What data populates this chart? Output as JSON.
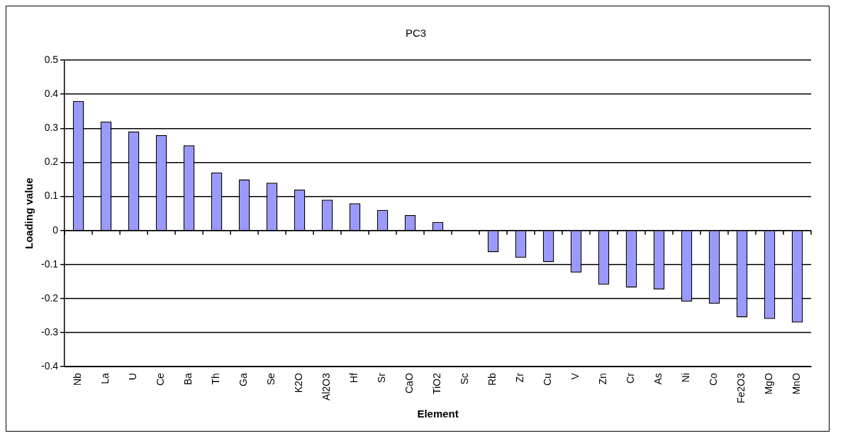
{
  "chart_data": {
    "type": "bar",
    "title": "PC3",
    "xlabel": "Element",
    "ylabel": "Loading value",
    "categories": [
      "Nb",
      "La",
      "U",
      "Ce",
      "Ba",
      "Th",
      "Ga",
      "Se",
      "K2O",
      "Al2O3",
      "Hf",
      "Sr",
      "CaO",
      "TiO2",
      "Sc",
      "Rb",
      "Zr",
      "Cu",
      "V",
      "Zn",
      "Cr",
      "As",
      "Ni",
      "Co",
      "Fe2O3",
      "MgO",
      "MnO"
    ],
    "values": [
      0.38,
      0.32,
      0.29,
      0.28,
      0.25,
      0.17,
      0.15,
      0.14,
      0.12,
      0.09,
      0.08,
      0.06,
      0.045,
      0.025,
      0,
      -0.064,
      -0.08,
      -0.093,
      -0.124,
      -0.159,
      -0.168,
      -0.173,
      -0.209,
      -0.215,
      -0.255,
      -0.26,
      -0.27
    ],
    "color": "#9999ff",
    "ylim": [
      -0.4,
      0.5
    ],
    "yticks": [
      -0.4,
      -0.3,
      -0.2,
      -0.1,
      0,
      0.1,
      0.2,
      0.3,
      0.4,
      0.5
    ],
    "grid": "y",
    "legend": false
  }
}
